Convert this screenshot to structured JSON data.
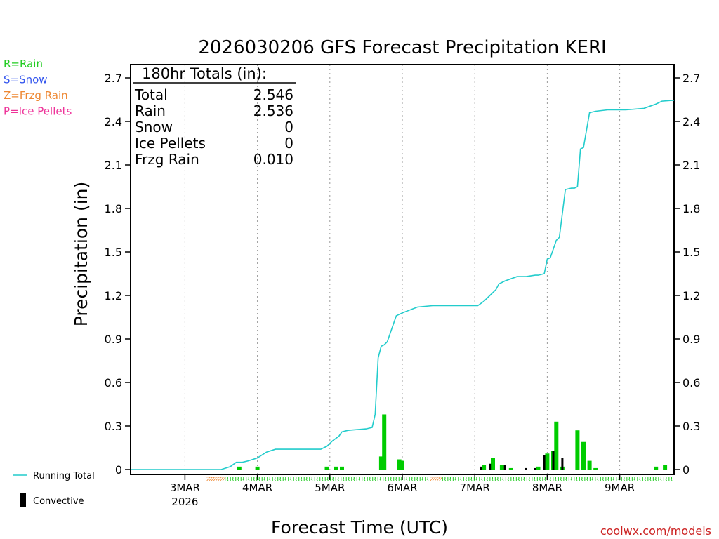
{
  "chart_data": {
    "type": "bar",
    "title": "2026030206 GFS Forecast Precipitation KERI",
    "xlabel": "Forecast Time (UTC)",
    "ylabel": "Precipitation (in)",
    "ylim": [
      0,
      2.8
    ],
    "yticks": [
      "0",
      "0.3",
      "0.6",
      "0.9",
      "1.2",
      "1.5",
      "1.8",
      "2.1",
      "2.4",
      "2.7"
    ],
    "x_unit": "forecast hour",
    "xlim": [
      0,
      180
    ],
    "day_ticks": [
      {
        "label": "3MAR",
        "sub": "2026",
        "hour": 18
      },
      {
        "label": "4MAR",
        "sub": "",
        "hour": 42
      },
      {
        "label": "5MAR",
        "sub": "",
        "hour": 66
      },
      {
        "label": "6MAR",
        "sub": "",
        "hour": 90
      },
      {
        "label": "7MAR",
        "sub": "",
        "hour": 114
      },
      {
        "label": "8MAR",
        "sub": "",
        "hour": 138
      },
      {
        "label": "9MAR",
        "sub": "",
        "hour": 162
      }
    ],
    "legend_types": [
      {
        "label": "R=Rain",
        "color": "#22cc22"
      },
      {
        "label": "S=Snow",
        "color": "#3355ee"
      },
      {
        "label": "Z=Frzg Rain",
        "color": "#ee8833"
      },
      {
        "label": "P=Ice Pellets",
        "color": "#ee3399"
      }
    ],
    "legend_series": {
      "running_total": "Running Total",
      "convective": "Convective"
    },
    "totals": {
      "header": "180hr Totals (in):",
      "rows": [
        {
          "label": "Total",
          "value": "2.546"
        },
        {
          "label": "Rain",
          "value": "2.536"
        },
        {
          "label": "Snow",
          "value": "0"
        },
        {
          "label": "Ice Pellets",
          "value": "0"
        },
        {
          "label": "Frzg Rain",
          "value": "0.010"
        }
      ]
    },
    "running_total": {
      "name": "Running Total",
      "color": "#22cccc",
      "hours": [
        0,
        30,
        33,
        35,
        37,
        39,
        42,
        45,
        48,
        63,
        65,
        67,
        69,
        70,
        72,
        78,
        80,
        81,
        82,
        83,
        84,
        85,
        87,
        88,
        90,
        95,
        100,
        115,
        117,
        119,
        121,
        122,
        124,
        128,
        131,
        134,
        135,
        137,
        138,
        139,
        141,
        142,
        144,
        146,
        147,
        148,
        149,
        150,
        152,
        154,
        158,
        164,
        170,
        174,
        176,
        180
      ],
      "values": [
        0.0,
        0.0,
        0.02,
        0.05,
        0.05,
        0.06,
        0.08,
        0.12,
        0.14,
        0.14,
        0.16,
        0.2,
        0.23,
        0.26,
        0.27,
        0.28,
        0.29,
        0.38,
        0.77,
        0.85,
        0.86,
        0.88,
        1.0,
        1.06,
        1.08,
        1.12,
        1.13,
        1.13,
        1.16,
        1.2,
        1.24,
        1.28,
        1.3,
        1.33,
        1.33,
        1.34,
        1.34,
        1.35,
        1.45,
        1.46,
        1.58,
        1.6,
        1.93,
        1.94,
        1.94,
        1.95,
        2.21,
        2.22,
        2.46,
        2.47,
        2.48,
        2.48,
        2.49,
        2.52,
        2.54,
        2.546
      ]
    },
    "rain_bars": {
      "name": "Rain (6-hr)",
      "color": "#00cc00",
      "hours": [
        36,
        42,
        65,
        68,
        70,
        83,
        84,
        89,
        90,
        117,
        120,
        123,
        126,
        135,
        138,
        140,
        141,
        143,
        148,
        150,
        152,
        154,
        174,
        177
      ],
      "values": [
        0.02,
        0.02,
        0.02,
        0.02,
        0.02,
        0.09,
        0.38,
        0.07,
        0.06,
        0.03,
        0.08,
        0.03,
        0.01,
        0.02,
        0.11,
        0.13,
        0.33,
        0.02,
        0.27,
        0.19,
        0.06,
        0.01,
        0.02,
        0.03
      ]
    },
    "convective_bars": {
      "name": "Convective",
      "color": "#000000",
      "hours": [
        116,
        119,
        124,
        131,
        134,
        137,
        140,
        143
      ],
      "values": [
        0.02,
        0.04,
        0.03,
        0.01,
        0.01,
        0.1,
        0.13,
        0.08
      ]
    },
    "ptype_strip": [
      {
        "type": "Z",
        "from": 25,
        "to": 31
      },
      {
        "type": "R",
        "from": 31,
        "to": 99
      },
      {
        "type": "Z",
        "from": 99,
        "to": 103
      },
      {
        "type": "R",
        "from": 103,
        "to": 180
      }
    ],
    "watermark": "coolwx.com/models"
  }
}
